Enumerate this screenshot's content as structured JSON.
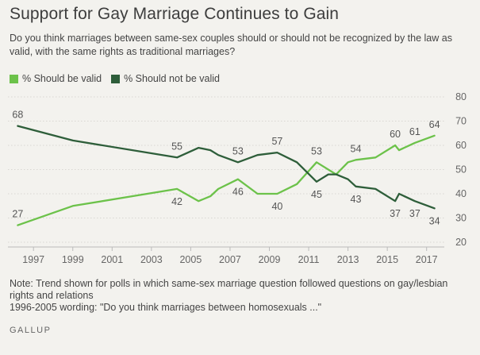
{
  "header": {
    "title": "Support for Gay Marriage Continues to Gain",
    "subtitle": "Do you think marriages between same-sex couples should or should not be recognized by the law as valid, with the same rights as traditional marriages?"
  },
  "footer": {
    "note": "Note: Trend shown for polls in which same-sex marriage question followed questions on gay/lesbian rights and relations",
    "wording": "1996-2005 wording: \"Do you think marriages between homosexuals ...\"",
    "brand": "GALLUP"
  },
  "chart_data": {
    "type": "line",
    "ylim": [
      20,
      80
    ],
    "xlim": [
      1995.7,
      2017.9
    ],
    "yticks": [
      20,
      30,
      40,
      50,
      60,
      70,
      80
    ],
    "xticks": [
      "1997",
      "1999",
      "2001",
      "2003",
      "2005",
      "2007",
      "2009",
      "2011",
      "2013",
      "2015",
      "2017"
    ],
    "grid": true,
    "legend_position": "top-left",
    "series": [
      {
        "name": "% Should be valid",
        "color": "#6cc24a",
        "x": [
          1996.2,
          1999.0,
          2004.3,
          2005.4,
          2006.0,
          2006.4,
          2007.4,
          2008.4,
          2009.4,
          2010.4,
          2011.4,
          2012.4,
          2013.0,
          2013.4,
          2014.4,
          2015.4,
          2015.6,
          2016.4,
          2017.4
        ],
        "values": [
          27,
          35,
          42,
          37,
          39,
          42,
          46,
          40,
          40,
          44,
          53,
          48,
          53,
          54,
          55,
          60,
          58,
          61,
          64
        ]
      },
      {
        "name": "% Should not be valid",
        "color": "#2e5e3a",
        "x": [
          1996.2,
          1999.0,
          2004.3,
          2005.4,
          2006.0,
          2006.4,
          2007.4,
          2008.4,
          2009.4,
          2010.4,
          2011.4,
          2012.0,
          2012.4,
          2013.0,
          2013.4,
          2014.4,
          2015.4,
          2015.6,
          2016.4,
          2017.4
        ],
        "values": [
          68,
          62,
          55,
          59,
          58,
          56,
          53,
          56,
          57,
          53,
          45,
          48,
          48,
          46,
          43,
          42,
          37,
          40,
          37,
          34
        ]
      }
    ],
    "annotations": [
      {
        "series": 1,
        "index": 0,
        "text": "68",
        "pos": "above"
      },
      {
        "series": 0,
        "index": 0,
        "text": "27",
        "pos": "above"
      },
      {
        "series": 1,
        "index": 2,
        "text": "55",
        "pos": "above"
      },
      {
        "series": 0,
        "index": 2,
        "text": "42",
        "pos": "below"
      },
      {
        "series": 1,
        "index": 6,
        "text": "53",
        "pos": "above"
      },
      {
        "series": 0,
        "index": 6,
        "text": "46",
        "pos": "below"
      },
      {
        "series": 1,
        "index": 8,
        "text": "57",
        "pos": "above"
      },
      {
        "series": 0,
        "index": 8,
        "text": "40",
        "pos": "below"
      },
      {
        "series": 0,
        "index": 10,
        "text": "53",
        "pos": "above"
      },
      {
        "series": 1,
        "index": 10,
        "text": "45",
        "pos": "below"
      },
      {
        "series": 0,
        "index": 13,
        "text": "54",
        "pos": "above"
      },
      {
        "series": 1,
        "index": 14,
        "text": "43",
        "pos": "below"
      },
      {
        "series": 0,
        "index": 15,
        "text": "60",
        "pos": "above"
      },
      {
        "series": 1,
        "index": 16,
        "text": "37",
        "pos": "below"
      },
      {
        "series": 0,
        "index": 17,
        "text": "61",
        "pos": "above"
      },
      {
        "series": 1,
        "index": 18,
        "text": "37",
        "pos": "below"
      },
      {
        "series": 0,
        "index": 18,
        "text": "64",
        "pos": "above"
      },
      {
        "series": 1,
        "index": 19,
        "text": "34",
        "pos": "below"
      }
    ]
  }
}
